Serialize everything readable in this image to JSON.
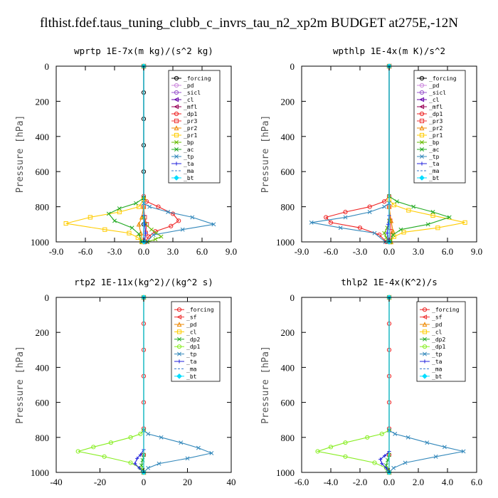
{
  "figure_title": "flthist.fdef.taus_tuning_clubb_c_invrs_tau_n2_xp2m  BUDGET at275E,-12N",
  "chart_data": [
    {
      "type": "line",
      "title": "wprtp  1E-7x(m kg)/(s^2 kg)",
      "ylabel": "Pressure [hPa]",
      "xlim": [
        -9,
        9
      ],
      "ylim": [
        1000,
        0
      ],
      "xticks": [
        "-9.0",
        "-6.0",
        "-3.0",
        "0.0",
        "3.0",
        "6.0",
        "9.0"
      ],
      "xtick_values": [
        -9,
        -6,
        -3,
        0,
        3,
        6,
        9
      ],
      "yticks": [
        "0",
        "200",
        "400",
        "600",
        "800",
        "1000"
      ],
      "ytick_values": [
        0,
        200,
        400,
        600,
        800,
        1000
      ],
      "series": [
        {
          "name": "_forcing",
          "color": "#000000",
          "marker": "o",
          "x": [
            0,
            0,
            0,
            0,
            0,
            0,
            0,
            0
          ],
          "y": [
            0,
            150,
            300,
            450,
            600,
            750,
            900,
            1000
          ]
        },
        {
          "name": "_pd",
          "color": "#cc88dd",
          "marker": "o",
          "x": [
            0,
            0
          ],
          "y": [
            0,
            1000
          ]
        },
        {
          "name": "_sicl",
          "color": "#9955cc",
          "marker": "o",
          "x": [
            0,
            0
          ],
          "y": [
            0,
            1000
          ]
        },
        {
          "name": "_cl",
          "color": "#6600aa",
          "marker": "<",
          "x": [
            0,
            0
          ],
          "y": [
            0,
            1000
          ]
        },
        {
          "name": "_mfl",
          "color": "#990055",
          "marker": "<",
          "x": [
            0,
            0
          ],
          "y": [
            0,
            1000
          ]
        },
        {
          "name": "_dp1",
          "color": "#ee2222",
          "marker": "o",
          "x": [
            0,
            0,
            0.3,
            1.5,
            3.0,
            3.6,
            2.8,
            1.2,
            0.5,
            0.2
          ],
          "y": [
            0,
            740,
            770,
            800,
            840,
            880,
            910,
            940,
            970,
            1000
          ]
        },
        {
          "name": "_pr3",
          "color": "#ee3333",
          "marker": "s",
          "x": [
            0,
            0,
            0.1,
            0.3,
            0.2,
            0.1
          ],
          "y": [
            0,
            800,
            860,
            900,
            950,
            1000
          ]
        },
        {
          "name": "_pr2",
          "color": "#ee8800",
          "marker": "^",
          "x": [
            0,
            0,
            -0.2,
            -0.5,
            -0.3,
            -0.1
          ],
          "y": [
            0,
            800,
            860,
            900,
            950,
            1000
          ]
        },
        {
          "name": "_pr1",
          "color": "#ffcc00",
          "marker": "s",
          "x": [
            0,
            0,
            -0.5,
            -2.5,
            -5.5,
            -8.0,
            -4.0,
            -1.5,
            -0.6,
            -0.2
          ],
          "y": [
            0,
            760,
            800,
            830,
            860,
            895,
            930,
            950,
            975,
            1000
          ]
        },
        {
          "name": "_bp",
          "color": "#66bb00",
          "marker": "x",
          "x": [
            0,
            0,
            0.2,
            0.8,
            1.3,
            1.8,
            1.2,
            0.4
          ],
          "y": [
            0,
            860,
            900,
            930,
            950,
            970,
            985,
            1000
          ]
        },
        {
          "name": "_ac",
          "color": "#22aa22",
          "marker": "x",
          "x": [
            0,
            0,
            -0.8,
            -2.5,
            -3.6,
            -3.0,
            -1.2,
            -0.5,
            -0.2
          ],
          "y": [
            0,
            750,
            780,
            810,
            840,
            880,
            920,
            955,
            1000
          ]
        },
        {
          "name": "_tp",
          "color": "#3388bb",
          "marker": "x",
          "x": [
            0,
            0,
            0.6,
            2.5,
            5.0,
            7.2,
            4.0,
            1.0,
            0.3
          ],
          "y": [
            0,
            780,
            800,
            830,
            860,
            900,
            930,
            960,
            1000
          ]
        },
        {
          "name": "_ta",
          "color": "#2222dd",
          "marker": "+",
          "x": [
            0,
            0,
            0.1,
            0.2,
            0.1
          ],
          "y": [
            0,
            850,
            900,
            950,
            1000
          ]
        },
        {
          "name": "_ma",
          "color": "#3377cc",
          "marker": "",
          "x": [
            0,
            0
          ],
          "y": [
            0,
            1000
          ]
        },
        {
          "name": "_bt",
          "color": "#00ddff",
          "marker": "D",
          "x": [
            0,
            0
          ],
          "y": [
            0,
            1000
          ]
        }
      ]
    },
    {
      "type": "line",
      "title": "wpthlp  1E-4x(m K)/s^2",
      "ylabel": "Pressure [hPa]",
      "xlim": [
        -9,
        9
      ],
      "ylim": [
        1000,
        0
      ],
      "xticks": [
        "-9.0",
        "-6.0",
        "-3.0",
        "0.0",
        "3.0",
        "6.0",
        "9.0"
      ],
      "xtick_values": [
        -9,
        -6,
        -3,
        0,
        3,
        6,
        9
      ],
      "yticks": [
        "0",
        "200",
        "400",
        "600",
        "800",
        "1000"
      ],
      "ytick_values": [
        0,
        200,
        400,
        600,
        800,
        1000
      ],
      "series": [
        {
          "name": "_forcing",
          "color": "#000000",
          "marker": "o",
          "x": [
            0,
            0
          ],
          "y": [
            0,
            1000
          ]
        },
        {
          "name": "_pd",
          "color": "#cc88dd",
          "marker": "o",
          "x": [
            0,
            0
          ],
          "y": [
            0,
            1000
          ]
        },
        {
          "name": "_sicl",
          "color": "#9955cc",
          "marker": "o",
          "x": [
            0,
            0
          ],
          "y": [
            0,
            1000
          ]
        },
        {
          "name": "_cl",
          "color": "#6600aa",
          "marker": "<",
          "x": [
            0,
            0
          ],
          "y": [
            0,
            1000
          ]
        },
        {
          "name": "_mfl",
          "color": "#990055",
          "marker": "<",
          "x": [
            0,
            0
          ],
          "y": [
            0,
            1000
          ]
        },
        {
          "name": "_dp1",
          "color": "#ee2222",
          "marker": "o",
          "x": [
            0,
            0,
            -0.5,
            -2.0,
            -4.5,
            -6.5,
            -6.0,
            -3.0,
            -1.0,
            -0.3
          ],
          "y": [
            0,
            740,
            770,
            800,
            830,
            860,
            890,
            920,
            960,
            1000
          ]
        },
        {
          "name": "_pr3",
          "color": "#ee3333",
          "marker": "s",
          "x": [
            0,
            0,
            0.1,
            0.2,
            0.1
          ],
          "y": [
            0,
            800,
            880,
            940,
            1000
          ]
        },
        {
          "name": "_pr2",
          "color": "#ee8800",
          "marker": "^",
          "x": [
            0,
            0,
            0.2,
            0.4,
            0.2
          ],
          "y": [
            0,
            800,
            880,
            940,
            1000
          ]
        },
        {
          "name": "_pr1",
          "color": "#ffcc00",
          "marker": "s",
          "x": [
            0,
            0,
            0.5,
            2.0,
            4.5,
            7.8,
            5.0,
            1.5,
            0.5,
            0.1
          ],
          "y": [
            0,
            760,
            790,
            820,
            850,
            890,
            920,
            945,
            970,
            1000
          ]
        },
        {
          "name": "_bp",
          "color": "#66bb00",
          "marker": "x",
          "x": [
            0,
            0,
            -0.2,
            -0.5,
            -0.3,
            -0.1
          ],
          "y": [
            0,
            880,
            920,
            950,
            975,
            1000
          ]
        },
        {
          "name": "_ac",
          "color": "#22aa22",
          "marker": "x",
          "x": [
            0,
            0,
            0.8,
            2.5,
            4.5,
            6.2,
            4.0,
            1.2,
            0.4,
            0.1
          ],
          "y": [
            0,
            740,
            770,
            800,
            830,
            860,
            900,
            930,
            960,
            1000
          ]
        },
        {
          "name": "_tp",
          "color": "#3388bb",
          "marker": "x",
          "x": [
            0,
            0,
            -0.5,
            -2.0,
            -4.5,
            -8.0,
            -5.0,
            -1.5,
            -0.4
          ],
          "y": [
            0,
            780,
            800,
            830,
            860,
            890,
            920,
            950,
            1000
          ]
        },
        {
          "name": "_ta",
          "color": "#2222dd",
          "marker": "+",
          "x": [
            0,
            0,
            -0.1,
            -0.2,
            -0.1
          ],
          "y": [
            0,
            850,
            900,
            950,
            1000
          ]
        },
        {
          "name": "_ma",
          "color": "#3377cc",
          "marker": "",
          "x": [
            0,
            0
          ],
          "y": [
            0,
            1000
          ]
        },
        {
          "name": "_bt",
          "color": "#00ddff",
          "marker": "D",
          "x": [
            0,
            0
          ],
          "y": [
            0,
            1000
          ]
        }
      ]
    },
    {
      "type": "line",
      "title": "rtp2  1E-11x(kg^2)/(kg^2 s)",
      "ylabel": "Pressure [hPa]",
      "xlim": [
        -40,
        40
      ],
      "ylim": [
        1000,
        0
      ],
      "xticks": [
        "-40",
        "-20",
        "0",
        "20",
        "40"
      ],
      "xtick_values": [
        -40,
        -20,
        0,
        20,
        40
      ],
      "yticks": [
        "0",
        "200",
        "400",
        "600",
        "800",
        "1000"
      ],
      "ytick_values": [
        0,
        200,
        400,
        600,
        800,
        1000
      ],
      "series": [
        {
          "name": "_forcing",
          "color": "#ee2222",
          "marker": "o",
          "x": [
            0,
            0,
            0,
            0,
            0,
            0,
            0,
            0
          ],
          "y": [
            0,
            150,
            300,
            450,
            600,
            750,
            900,
            1000
          ]
        },
        {
          "name": "_sf",
          "color": "#ee3333",
          "marker": "<",
          "x": [
            0,
            0
          ],
          "y": [
            0,
            1000
          ]
        },
        {
          "name": "_pd",
          "color": "#ee8800",
          "marker": "^",
          "x": [
            0,
            0
          ],
          "y": [
            0,
            1000
          ]
        },
        {
          "name": "_cl",
          "color": "#ffcc00",
          "marker": "s",
          "x": [
            0,
            0
          ],
          "y": [
            0,
            1000
          ]
        },
        {
          "name": "_dp2",
          "color": "#22aa22",
          "marker": "x",
          "x": [
            0,
            0,
            -0.5,
            -1.0,
            -0.5,
            0
          ],
          "y": [
            0,
            900,
            930,
            960,
            985,
            1000
          ]
        },
        {
          "name": "_dp1",
          "color": "#88ee22",
          "marker": "o",
          "x": [
            0,
            0,
            -1.5,
            -6.0,
            -15.0,
            -23.0,
            -30.0,
            -18.0,
            -6.0,
            -1.5,
            0
          ],
          "y": [
            0,
            760,
            780,
            800,
            830,
            855,
            880,
            910,
            945,
            975,
            1000
          ]
        },
        {
          "name": "_tp",
          "color": "#3388bb",
          "marker": "x",
          "x": [
            0,
            0,
            2.0,
            8.0,
            17.0,
            25.0,
            31.0,
            20.0,
            7.0,
            2.0,
            0
          ],
          "y": [
            0,
            760,
            780,
            800,
            830,
            860,
            890,
            920,
            950,
            975,
            1000
          ]
        },
        {
          "name": "_ta",
          "color": "#2222dd",
          "marker": "+",
          "x": [
            0,
            0,
            -1.5,
            -3.0,
            -4.0,
            -2.0,
            0
          ],
          "y": [
            0,
            870,
            900,
            920,
            950,
            975,
            1000
          ]
        },
        {
          "name": "_ma",
          "color": "#3377cc",
          "marker": "",
          "x": [
            0,
            0
          ],
          "y": [
            0,
            1000
          ]
        },
        {
          "name": "_bt",
          "color": "#00ddff",
          "marker": "D",
          "x": [
            0,
            0
          ],
          "y": [
            0,
            1000
          ]
        }
      ]
    },
    {
      "type": "line",
      "title": "thlp2  1E-4x(K^2)/s",
      "ylabel": "Pressure [hPa]",
      "xlim": [
        -6,
        6
      ],
      "ylim": [
        1000,
        0
      ],
      "xticks": [
        "-6.0",
        "-4.0",
        "-2.0",
        "0.0",
        "2.0",
        "4.0",
        "6.0"
      ],
      "xtick_values": [
        -6,
        -4,
        -2,
        0,
        2,
        4,
        6
      ],
      "yticks": [
        "0",
        "200",
        "400",
        "600",
        "800",
        "1000"
      ],
      "ytick_values": [
        0,
        200,
        400,
        600,
        800,
        1000
      ],
      "series": [
        {
          "name": "_forcing",
          "color": "#ee2222",
          "marker": "o",
          "x": [
            0,
            0,
            0,
            0,
            0,
            0,
            0,
            0
          ],
          "y": [
            0,
            150,
            300,
            450,
            600,
            750,
            900,
            1000
          ]
        },
        {
          "name": "_sf",
          "color": "#ee3333",
          "marker": "<",
          "x": [
            0,
            0
          ],
          "y": [
            0,
            1000
          ]
        },
        {
          "name": "_pd",
          "color": "#ee8800",
          "marker": "^",
          "x": [
            0,
            0
          ],
          "y": [
            0,
            1000
          ]
        },
        {
          "name": "_cl",
          "color": "#ffcc00",
          "marker": "s",
          "x": [
            0,
            0
          ],
          "y": [
            0,
            1000
          ]
        },
        {
          "name": "_dp2",
          "color": "#22aa22",
          "marker": "x",
          "x": [
            0,
            0,
            -0.1,
            -0.2,
            -0.1,
            0
          ],
          "y": [
            0,
            900,
            930,
            960,
            985,
            1000
          ]
        },
        {
          "name": "_dp1",
          "color": "#88ee22",
          "marker": "o",
          "x": [
            0,
            0,
            -0.5,
            -1.5,
            -3.0,
            -4.0,
            -4.9,
            -3.0,
            -1.0,
            -0.2,
            0
          ],
          "y": [
            0,
            760,
            780,
            800,
            830,
            855,
            880,
            910,
            945,
            975,
            1000
          ]
        },
        {
          "name": "_tp",
          "color": "#3388bb",
          "marker": "x",
          "x": [
            0,
            0,
            0.4,
            1.3,
            2.6,
            3.8,
            5.1,
            3.2,
            1.1,
            0.3,
            0
          ],
          "y": [
            0,
            760,
            780,
            800,
            830,
            855,
            880,
            910,
            945,
            975,
            1000
          ]
        },
        {
          "name": "_ta",
          "color": "#2222dd",
          "marker": "+",
          "x": [
            0,
            0,
            -0.3,
            -0.6,
            -0.5,
            -0.2,
            0
          ],
          "y": [
            0,
            880,
            905,
            925,
            950,
            975,
            1000
          ]
        },
        {
          "name": "_ma",
          "color": "#3377cc",
          "marker": "",
          "x": [
            0,
            0
          ],
          "y": [
            0,
            1000
          ]
        },
        {
          "name": "_bt",
          "color": "#00ddff",
          "marker": "D",
          "x": [
            0,
            0
          ],
          "y": [
            0,
            1000
          ]
        }
      ]
    }
  ]
}
